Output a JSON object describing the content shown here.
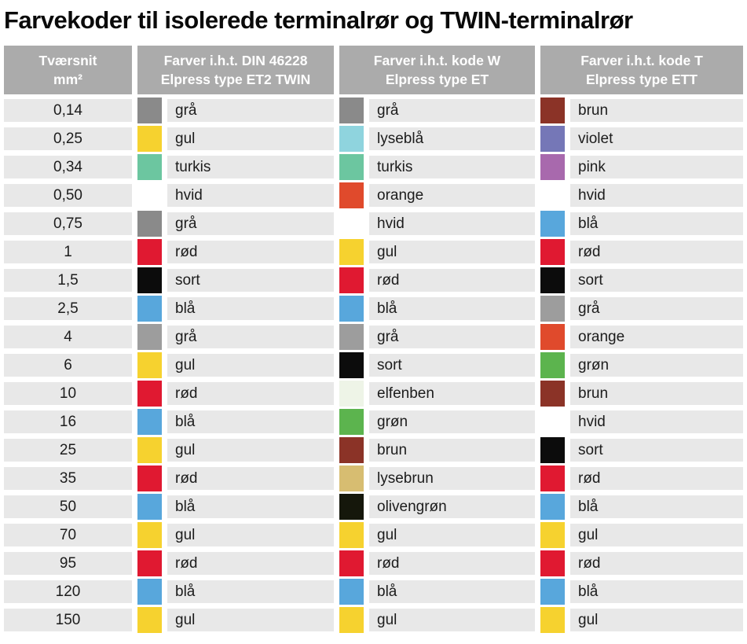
{
  "page_title": "Farvekoder til isolerede terminalrør og TWIN-terminalrør",
  "colors": {
    "header_bg": "#ABABAB",
    "header_text": "#FFFFFF",
    "row_bg": "#E8E8E8",
    "row_text": "#1C1C1C",
    "title_text": "#0A0A0A",
    "swatch_palette": {
      "graa_dark": "#8A8A8A",
      "graa_light": "#9D9D9D",
      "gul": "#F6D22F",
      "turkis": "#6CC6A0",
      "hvid": "#FFFFFF",
      "roed": "#E01931",
      "sort": "#0C0C0C",
      "blaa": "#58A7DC",
      "lyseblaa": "#8FD4DE",
      "orange": "#E04A2C",
      "brun": "#8B3327",
      "violet": "#7577B7",
      "pink": "#A869AD",
      "groen": "#5CB44E",
      "elfenben": "#EEF4E7",
      "lysebrun": "#D7BD71",
      "olivengroen": "#15170B"
    }
  },
  "table": {
    "headers": [
      {
        "line1": "Tværsnit",
        "line2": "mm²"
      },
      {
        "line1": "Farver i.h.t. DIN 46228",
        "line2": "Elpress type ET2 TWIN"
      },
      {
        "line1": "Farver i.h.t. kode W",
        "line2": "Elpress type ET"
      },
      {
        "line1": "Farver i.h.t. kode T",
        "line2": "Elpress type ETT"
      }
    ],
    "rows": [
      {
        "size": "0,14",
        "din": {
          "label": "grå",
          "hex": "#8A8A8A"
        },
        "w": {
          "label": "grå",
          "hex": "#8A8A8A"
        },
        "t": {
          "label": "brun",
          "hex": "#8B3327"
        }
      },
      {
        "size": "0,25",
        "din": {
          "label": "gul",
          "hex": "#F6D22F"
        },
        "w": {
          "label": "lyseblå",
          "hex": "#8FD4DE"
        },
        "t": {
          "label": "violet",
          "hex": "#7577B7"
        }
      },
      {
        "size": "0,34",
        "din": {
          "label": "turkis",
          "hex": "#6CC6A0"
        },
        "w": {
          "label": "turkis",
          "hex": "#6CC6A0"
        },
        "t": {
          "label": "pink",
          "hex": "#A869AD"
        }
      },
      {
        "size": "0,50",
        "din": {
          "label": "hvid",
          "hex": "#FFFFFF"
        },
        "w": {
          "label": "orange",
          "hex": "#E04A2C"
        },
        "t": {
          "label": "hvid",
          "hex": "#FFFFFF"
        }
      },
      {
        "size": "0,75",
        "din": {
          "label": "grå",
          "hex": "#8A8A8A"
        },
        "w": {
          "label": "hvid",
          "hex": "#FFFFFF"
        },
        "t": {
          "label": "blå",
          "hex": "#58A7DC"
        }
      },
      {
        "size": "1",
        "din": {
          "label": "rød",
          "hex": "#E01931"
        },
        "w": {
          "label": "gul",
          "hex": "#F6D22F"
        },
        "t": {
          "label": "rød",
          "hex": "#E01931"
        }
      },
      {
        "size": "1,5",
        "din": {
          "label": "sort",
          "hex": "#0C0C0C"
        },
        "w": {
          "label": "rød",
          "hex": "#E01931"
        },
        "t": {
          "label": "sort",
          "hex": "#0C0C0C"
        }
      },
      {
        "size": "2,5",
        "din": {
          "label": "blå",
          "hex": "#58A7DC"
        },
        "w": {
          "label": "blå",
          "hex": "#58A7DC"
        },
        "t": {
          "label": "grå",
          "hex": "#9D9D9D"
        }
      },
      {
        "size": "4",
        "din": {
          "label": "grå",
          "hex": "#9D9D9D"
        },
        "w": {
          "label": "grå",
          "hex": "#9D9D9D"
        },
        "t": {
          "label": "orange",
          "hex": "#E04A2C"
        }
      },
      {
        "size": "6",
        "din": {
          "label": "gul",
          "hex": "#F6D22F"
        },
        "w": {
          "label": "sort",
          "hex": "#0C0C0C"
        },
        "t": {
          "label": "grøn",
          "hex": "#5CB44E"
        }
      },
      {
        "size": "10",
        "din": {
          "label": "rød",
          "hex": "#E01931"
        },
        "w": {
          "label": "elfenben",
          "hex": "#EEF4E7"
        },
        "t": {
          "label": "brun",
          "hex": "#8B3327"
        }
      },
      {
        "size": "16",
        "din": {
          "label": "blå",
          "hex": "#58A7DC"
        },
        "w": {
          "label": "grøn",
          "hex": "#5CB44E"
        },
        "t": {
          "label": "hvid",
          "hex": "#FFFFFF"
        }
      },
      {
        "size": "25",
        "din": {
          "label": "gul",
          "hex": "#F6D22F"
        },
        "w": {
          "label": "brun",
          "hex": "#8B3327"
        },
        "t": {
          "label": "sort",
          "hex": "#0C0C0C"
        }
      },
      {
        "size": "35",
        "din": {
          "label": "rød",
          "hex": "#E01931"
        },
        "w": {
          "label": "lysebrun",
          "hex": "#D7BD71"
        },
        "t": {
          "label": "rød",
          "hex": "#E01931"
        }
      },
      {
        "size": "50",
        "din": {
          "label": "blå",
          "hex": "#58A7DC"
        },
        "w": {
          "label": "olivengrøn",
          "hex": "#15170B"
        },
        "t": {
          "label": "blå",
          "hex": "#58A7DC"
        }
      },
      {
        "size": "70",
        "din": {
          "label": "gul",
          "hex": "#F6D22F"
        },
        "w": {
          "label": "gul",
          "hex": "#F6D22F"
        },
        "t": {
          "label": "gul",
          "hex": "#F6D22F"
        }
      },
      {
        "size": "95",
        "din": {
          "label": "rød",
          "hex": "#E01931"
        },
        "w": {
          "label": "rød",
          "hex": "#E01931"
        },
        "t": {
          "label": "rød",
          "hex": "#E01931"
        }
      },
      {
        "size": "120",
        "din": {
          "label": "blå",
          "hex": "#58A7DC"
        },
        "w": {
          "label": "blå",
          "hex": "#58A7DC"
        },
        "t": {
          "label": "blå",
          "hex": "#58A7DC"
        }
      },
      {
        "size": "150",
        "din": {
          "label": "gul",
          "hex": "#F6D22F"
        },
        "w": {
          "label": "gul",
          "hex": "#F6D22F"
        },
        "t": {
          "label": "gul",
          "hex": "#F6D22F"
        }
      }
    ]
  }
}
